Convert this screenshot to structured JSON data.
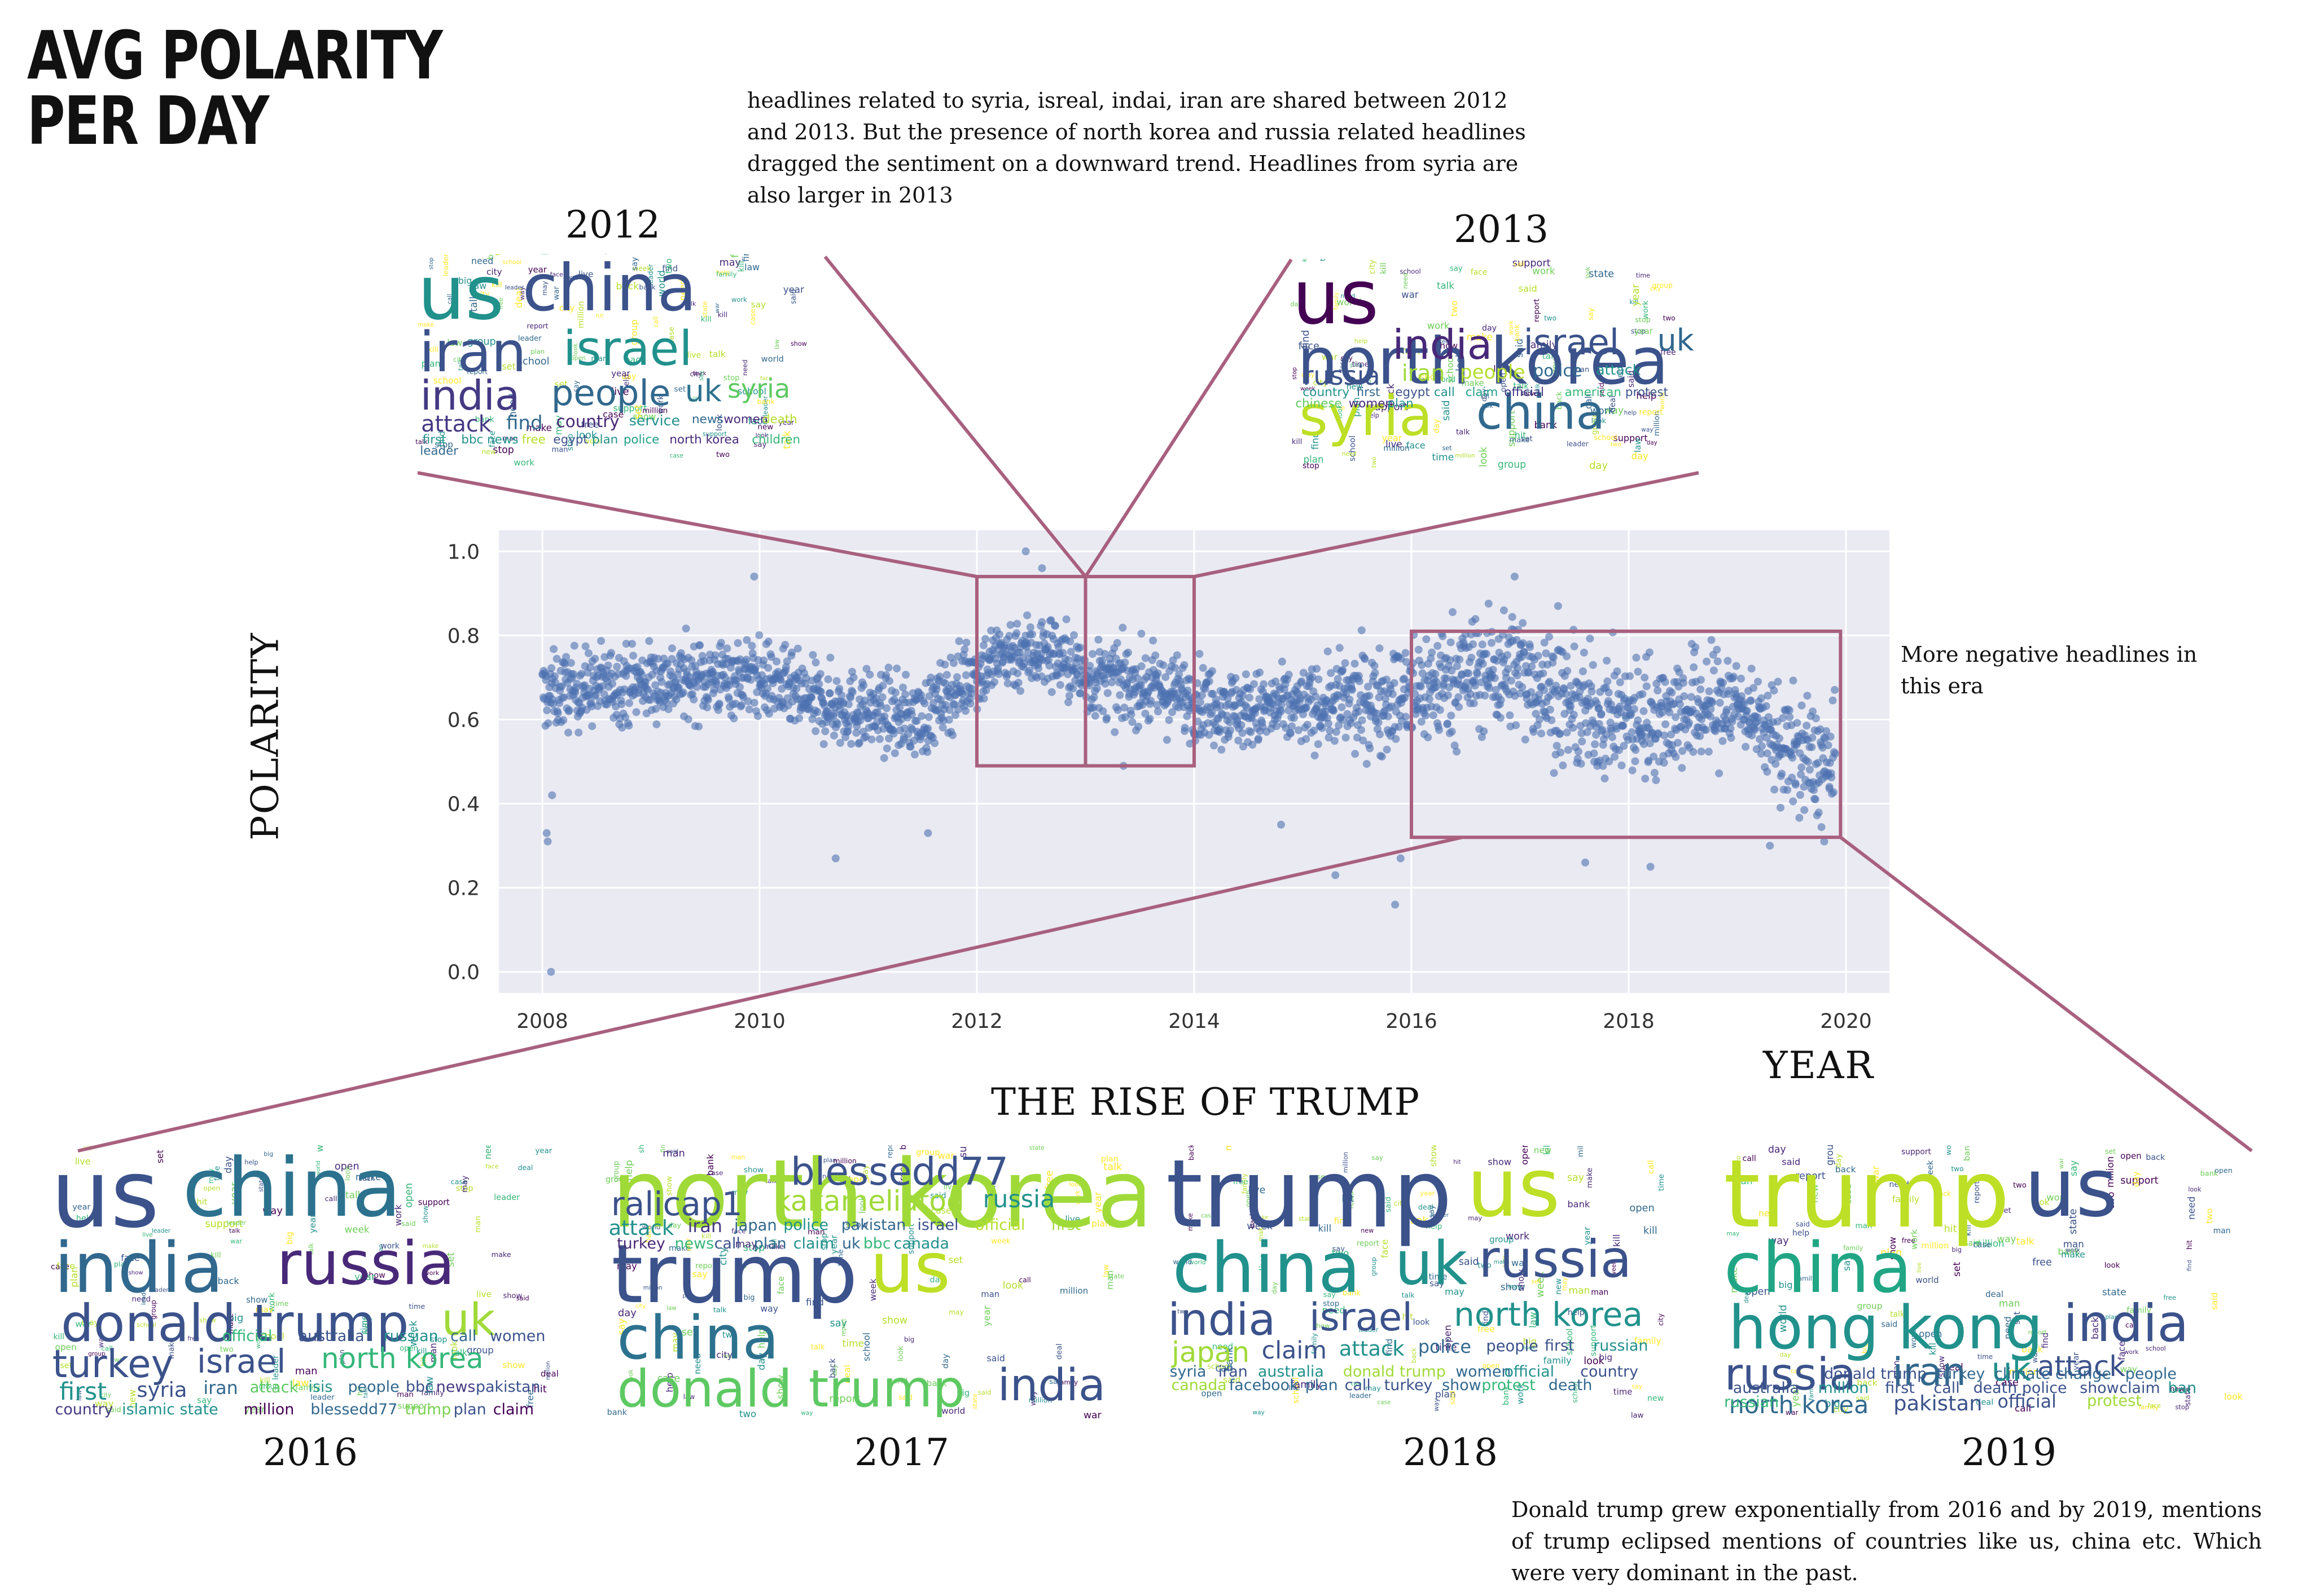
{
  "title_lines": [
    "AVG POLARITY",
    "PER DAY"
  ],
  "notes": {
    "top": "headlines related to syria, isreal, indai, iran are shared between 2012 and 2013. But the presence of north korea and russia related headlines dragged the sentiment on a downward trend. Headlines from syria are also larger in 2013",
    "right": "More negative headlines in this era",
    "bottom": "Donald trump grew exponentially from 2016 and by 2019, mentions of trump eclipsed mentions of countries like us, china etc. Which were very dominant in the past."
  },
  "section_title": "THE RISE OF TRUMP",
  "chart_data": {
    "type": "scatter",
    "xlabel": "YEAR",
    "ylabel": "POLARITY",
    "xlim": [
      2007.6,
      2020.4
    ],
    "ylim": [
      -0.05,
      1.05
    ],
    "xticks": [
      "2008",
      "2010",
      "2012",
      "2014",
      "2016",
      "2018",
      "2020"
    ],
    "yticks": [
      "0.0",
      "0.2",
      "0.4",
      "0.6",
      "0.8",
      "1.0"
    ],
    "grid": true,
    "point_color": "#4c72b0",
    "trend_points": [
      [
        2008.0,
        0.66
      ],
      [
        2008.5,
        0.68
      ],
      [
        2009.0,
        0.69
      ],
      [
        2009.5,
        0.7
      ],
      [
        2010.0,
        0.7
      ],
      [
        2010.5,
        0.64
      ],
      [
        2011.0,
        0.62
      ],
      [
        2011.5,
        0.6
      ],
      [
        2011.9,
        0.7
      ],
      [
        2012.3,
        0.76
      ],
      [
        2012.7,
        0.76
      ],
      [
        2013.0,
        0.7
      ],
      [
        2013.5,
        0.68
      ],
      [
        2014.0,
        0.65
      ],
      [
        2014.5,
        0.62
      ],
      [
        2015.0,
        0.63
      ],
      [
        2015.5,
        0.64
      ],
      [
        2016.0,
        0.66
      ],
      [
        2016.5,
        0.71
      ],
      [
        2017.0,
        0.72
      ],
      [
        2017.5,
        0.62
      ],
      [
        2018.0,
        0.6
      ],
      [
        2018.5,
        0.62
      ],
      [
        2019.0,
        0.64
      ],
      [
        2019.5,
        0.52
      ],
      [
        2019.9,
        0.48
      ]
    ],
    "outliers": [
      [
        2008.08,
        0.0
      ],
      [
        2008.05,
        0.31
      ],
      [
        2008.04,
        0.33
      ],
      [
        2008.09,
        0.42
      ],
      [
        2009.95,
        0.94
      ],
      [
        2010.7,
        0.27
      ],
      [
        2011.55,
        0.33
      ],
      [
        2012.45,
        1.0
      ],
      [
        2012.6,
        0.96
      ],
      [
        2015.85,
        0.16
      ],
      [
        2015.9,
        0.27
      ],
      [
        2016.95,
        0.94
      ],
      [
        2017.35,
        0.87
      ],
      [
        2017.6,
        0.26
      ],
      [
        2018.2,
        0.25
      ],
      [
        2019.3,
        0.3
      ],
      [
        2019.8,
        0.31
      ],
      [
        2013.35,
        0.49
      ],
      [
        2014.8,
        0.35
      ],
      [
        2015.3,
        0.23
      ]
    ],
    "highlight_boxes": [
      {
        "x": [
          2012.0,
          2013.0
        ],
        "y": [
          0.49,
          0.94
        ]
      },
      {
        "x": [
          2013.0,
          2014.0
        ],
        "y": [
          0.49,
          0.94
        ]
      },
      {
        "x": [
          2016.0,
          2019.95
        ],
        "y": [
          0.32,
          0.81
        ]
      }
    ]
  },
  "wordclouds": [
    {
      "year": "2012",
      "words": [
        {
          "t": "us",
          "c": "#21918c"
        },
        {
          "t": "china",
          "c": "#3b528b"
        },
        {
          "t": "iran",
          "c": "#3b528b"
        },
        {
          "t": "israel",
          "c": "#21918c"
        },
        {
          "t": "india",
          "c": "#443983"
        },
        {
          "t": "people",
          "c": "#31688e"
        },
        {
          "t": "uk",
          "c": "#2c728e"
        },
        {
          "t": "syria",
          "c": "#5ec962"
        },
        {
          "t": "attack",
          "c": "#443983"
        },
        {
          "t": "find",
          "c": "#31688e"
        },
        {
          "t": "country",
          "c": "#482878"
        },
        {
          "t": "service",
          "c": "#21918c"
        },
        {
          "t": "news",
          "c": "#31688e"
        },
        {
          "t": "women",
          "c": "#482878"
        },
        {
          "t": "death",
          "c": "#b5de2b"
        },
        {
          "t": "first",
          "c": "#21918c"
        },
        {
          "t": "bbc news",
          "c": "#21918c"
        },
        {
          "t": "free",
          "c": "#b5de2b"
        },
        {
          "t": "egypt",
          "c": "#3b528b"
        },
        {
          "t": "plan",
          "c": "#21918c"
        },
        {
          "t": "police",
          "c": "#1f9e89"
        },
        {
          "t": "north korea",
          "c": "#482878"
        },
        {
          "t": "children",
          "c": "#35b779"
        },
        {
          "t": "leader",
          "c": "#31688e"
        }
      ]
    },
    {
      "year": "2013",
      "words": [
        {
          "t": "us",
          "c": "#440154"
        },
        {
          "t": "north korea",
          "c": "#3b528b"
        },
        {
          "t": "syria",
          "c": "#bddf26"
        },
        {
          "t": "china",
          "c": "#31688e"
        },
        {
          "t": "india",
          "c": "#482878"
        },
        {
          "t": "israel",
          "c": "#3b528b"
        },
        {
          "t": "uk",
          "c": "#31688e"
        },
        {
          "t": "russia",
          "c": "#3b528b"
        },
        {
          "t": "iran",
          "c": "#a0da39"
        },
        {
          "t": "people",
          "c": "#b5de2b"
        },
        {
          "t": "police",
          "c": "#31688e"
        },
        {
          "t": "attack",
          "c": "#21918c"
        },
        {
          "t": "country",
          "c": "#21918c"
        },
        {
          "t": "first",
          "c": "#31688e"
        },
        {
          "t": "egypt",
          "c": "#3b528b"
        },
        {
          "t": "call",
          "c": "#21918c"
        },
        {
          "t": "claim",
          "c": "#1f9e89"
        },
        {
          "t": "official",
          "c": "#443983"
        },
        {
          "t": "american",
          "c": "#35b779"
        },
        {
          "t": "protest",
          "c": "#3b528b"
        },
        {
          "t": "chinese",
          "c": "#5ec962"
        },
        {
          "t": "women",
          "c": "#482878"
        },
        {
          "t": "plan",
          "c": "#21918c"
        }
      ]
    },
    {
      "year": "2016",
      "words": [
        {
          "t": "us",
          "c": "#3b528b"
        },
        {
          "t": "china",
          "c": "#2c728e"
        },
        {
          "t": "india",
          "c": "#31688e"
        },
        {
          "t": "russia",
          "c": "#482878"
        },
        {
          "t": "donald trump",
          "c": "#3b528b"
        },
        {
          "t": "uk",
          "c": "#a0da39"
        },
        {
          "t": "turkey",
          "c": "#3b528b"
        },
        {
          "t": "israel",
          "c": "#3b528b"
        },
        {
          "t": "north korea",
          "c": "#35b779"
        },
        {
          "t": "first",
          "c": "#21918c"
        },
        {
          "t": "syria",
          "c": "#3b528b"
        },
        {
          "t": "iran",
          "c": "#31688e"
        },
        {
          "t": "attack",
          "c": "#5ec962"
        },
        {
          "t": "isis",
          "c": "#21918c"
        },
        {
          "t": "people",
          "c": "#31688e"
        },
        {
          "t": "bbc",
          "c": "#3b528b"
        },
        {
          "t": "news",
          "c": "#443983"
        },
        {
          "t": "pakistan",
          "c": "#3b528b"
        },
        {
          "t": "country",
          "c": "#443983"
        },
        {
          "t": "islamic state",
          "c": "#21918c"
        },
        {
          "t": "million",
          "c": "#440154"
        },
        {
          "t": "blessedd77",
          "c": "#31688e"
        },
        {
          "t": "trump",
          "c": "#7ad151"
        },
        {
          "t": "plan",
          "c": "#3b528b"
        },
        {
          "t": "claim",
          "c": "#440154"
        },
        {
          "t": "official",
          "c": "#35b779"
        },
        {
          "t": "australia",
          "c": "#3b528b"
        },
        {
          "t": "russian",
          "c": "#21918c"
        },
        {
          "t": "call",
          "c": "#31688e"
        },
        {
          "t": "women",
          "c": "#3b528b"
        }
      ]
    },
    {
      "year": "2017",
      "words": [
        {
          "t": "north korea",
          "c": "#a0da39"
        },
        {
          "t": "trump",
          "c": "#3b528b"
        },
        {
          "t": "us",
          "c": "#bddf26"
        },
        {
          "t": "china",
          "c": "#2c728e"
        },
        {
          "t": "donald trump",
          "c": "#5ec962"
        },
        {
          "t": "india",
          "c": "#3b528b"
        },
        {
          "t": "blessedd77",
          "c": "#3b528b"
        },
        {
          "t": "ralicap1",
          "c": "#3b528b"
        },
        {
          "t": "kakameliatod",
          "c": "#a0da39"
        },
        {
          "t": "russia",
          "c": "#21918c"
        },
        {
          "t": "attack",
          "c": "#21918c"
        },
        {
          "t": "iran",
          "c": "#443983"
        },
        {
          "t": "japan",
          "c": "#31688e"
        },
        {
          "t": "police",
          "c": "#21918c"
        },
        {
          "t": "pakistan",
          "c": "#31688e"
        },
        {
          "t": "israel",
          "c": "#3b528b"
        },
        {
          "t": "official",
          "c": "#b5de2b"
        },
        {
          "t": "first",
          "c": "#a0da39"
        },
        {
          "t": "turkey",
          "c": "#482878"
        },
        {
          "t": "news",
          "c": "#35b779"
        },
        {
          "t": "call",
          "c": "#3b528b"
        },
        {
          "t": "plan",
          "c": "#31688e"
        },
        {
          "t": "claim",
          "c": "#21918c"
        },
        {
          "t": "uk",
          "c": "#31688e"
        },
        {
          "t": "bbc",
          "c": "#35b779"
        },
        {
          "t": "canada",
          "c": "#21918c"
        }
      ]
    },
    {
      "year": "2018",
      "words": [
        {
          "t": "trump",
          "c": "#3b528b"
        },
        {
          "t": "us",
          "c": "#bddf26"
        },
        {
          "t": "china",
          "c": "#21918c"
        },
        {
          "t": "uk",
          "c": "#21918c"
        },
        {
          "t": "russia",
          "c": "#3b528b"
        },
        {
          "t": "india",
          "c": "#3b528b"
        },
        {
          "t": "israel",
          "c": "#3b528b"
        },
        {
          "t": "north korea",
          "c": "#21918c"
        },
        {
          "t": "japan",
          "c": "#a0da39"
        },
        {
          "t": "claim",
          "c": "#3b528b"
        },
        {
          "t": "attack",
          "c": "#21918c"
        },
        {
          "t": "police",
          "c": "#31688e"
        },
        {
          "t": "people",
          "c": "#3b528b"
        },
        {
          "t": "first",
          "c": "#3b528b"
        },
        {
          "t": "russian",
          "c": "#21918c"
        },
        {
          "t": "syria",
          "c": "#31688e"
        },
        {
          "t": "iran",
          "c": "#3b528b"
        },
        {
          "t": "australia",
          "c": "#21918c"
        },
        {
          "t": "donald trump",
          "c": "#a0da39"
        },
        {
          "t": "women",
          "c": "#31688e"
        },
        {
          "t": "official",
          "c": "#21918c"
        },
        {
          "t": "country",
          "c": "#3b528b"
        },
        {
          "t": "canada",
          "c": "#a0da39"
        },
        {
          "t": "facebook",
          "c": "#31688e"
        },
        {
          "t": "plan",
          "c": "#31688e"
        },
        {
          "t": "call",
          "c": "#3b528b"
        },
        {
          "t": "turkey",
          "c": "#3b528b"
        },
        {
          "t": "show",
          "c": "#31688e"
        },
        {
          "t": "protest",
          "c": "#35b779"
        },
        {
          "t": "death",
          "c": "#31688e"
        }
      ]
    },
    {
      "year": "2019",
      "words": [
        {
          "t": "trump",
          "c": "#bddf26"
        },
        {
          "t": "us",
          "c": "#3b528b"
        },
        {
          "t": "china",
          "c": "#21a685"
        },
        {
          "t": "hong kong",
          "c": "#21918c"
        },
        {
          "t": "india",
          "c": "#3b528b"
        },
        {
          "t": "russia",
          "c": "#3b528b"
        },
        {
          "t": "iran",
          "c": "#31688e"
        },
        {
          "t": "uk",
          "c": "#21918c"
        },
        {
          "t": "attack",
          "c": "#3b528b"
        },
        {
          "t": "north korea",
          "c": "#31688e"
        },
        {
          "t": "pakistan",
          "c": "#3b528b"
        },
        {
          "t": "official",
          "c": "#3b528b"
        },
        {
          "t": "protest",
          "c": "#a0da39"
        },
        {
          "t": "donald trump",
          "c": "#3b528b"
        },
        {
          "t": "turkey",
          "c": "#31688e"
        },
        {
          "t": "climate change",
          "c": "#31688e"
        },
        {
          "t": "people",
          "c": "#31688e"
        },
        {
          "t": "australia",
          "c": "#3b528b"
        },
        {
          "t": "million",
          "c": "#21918c"
        },
        {
          "t": "first",
          "c": "#3b528b"
        },
        {
          "t": "call",
          "c": "#3b528b"
        },
        {
          "t": "death",
          "c": "#3b528b"
        },
        {
          "t": "police",
          "c": "#3b528b"
        },
        {
          "t": "show",
          "c": "#3b528b"
        },
        {
          "t": "claim",
          "c": "#3b528b"
        },
        {
          "t": "ban",
          "c": "#21918c"
        },
        {
          "t": "russian",
          "c": "#35b779"
        }
      ]
    }
  ]
}
